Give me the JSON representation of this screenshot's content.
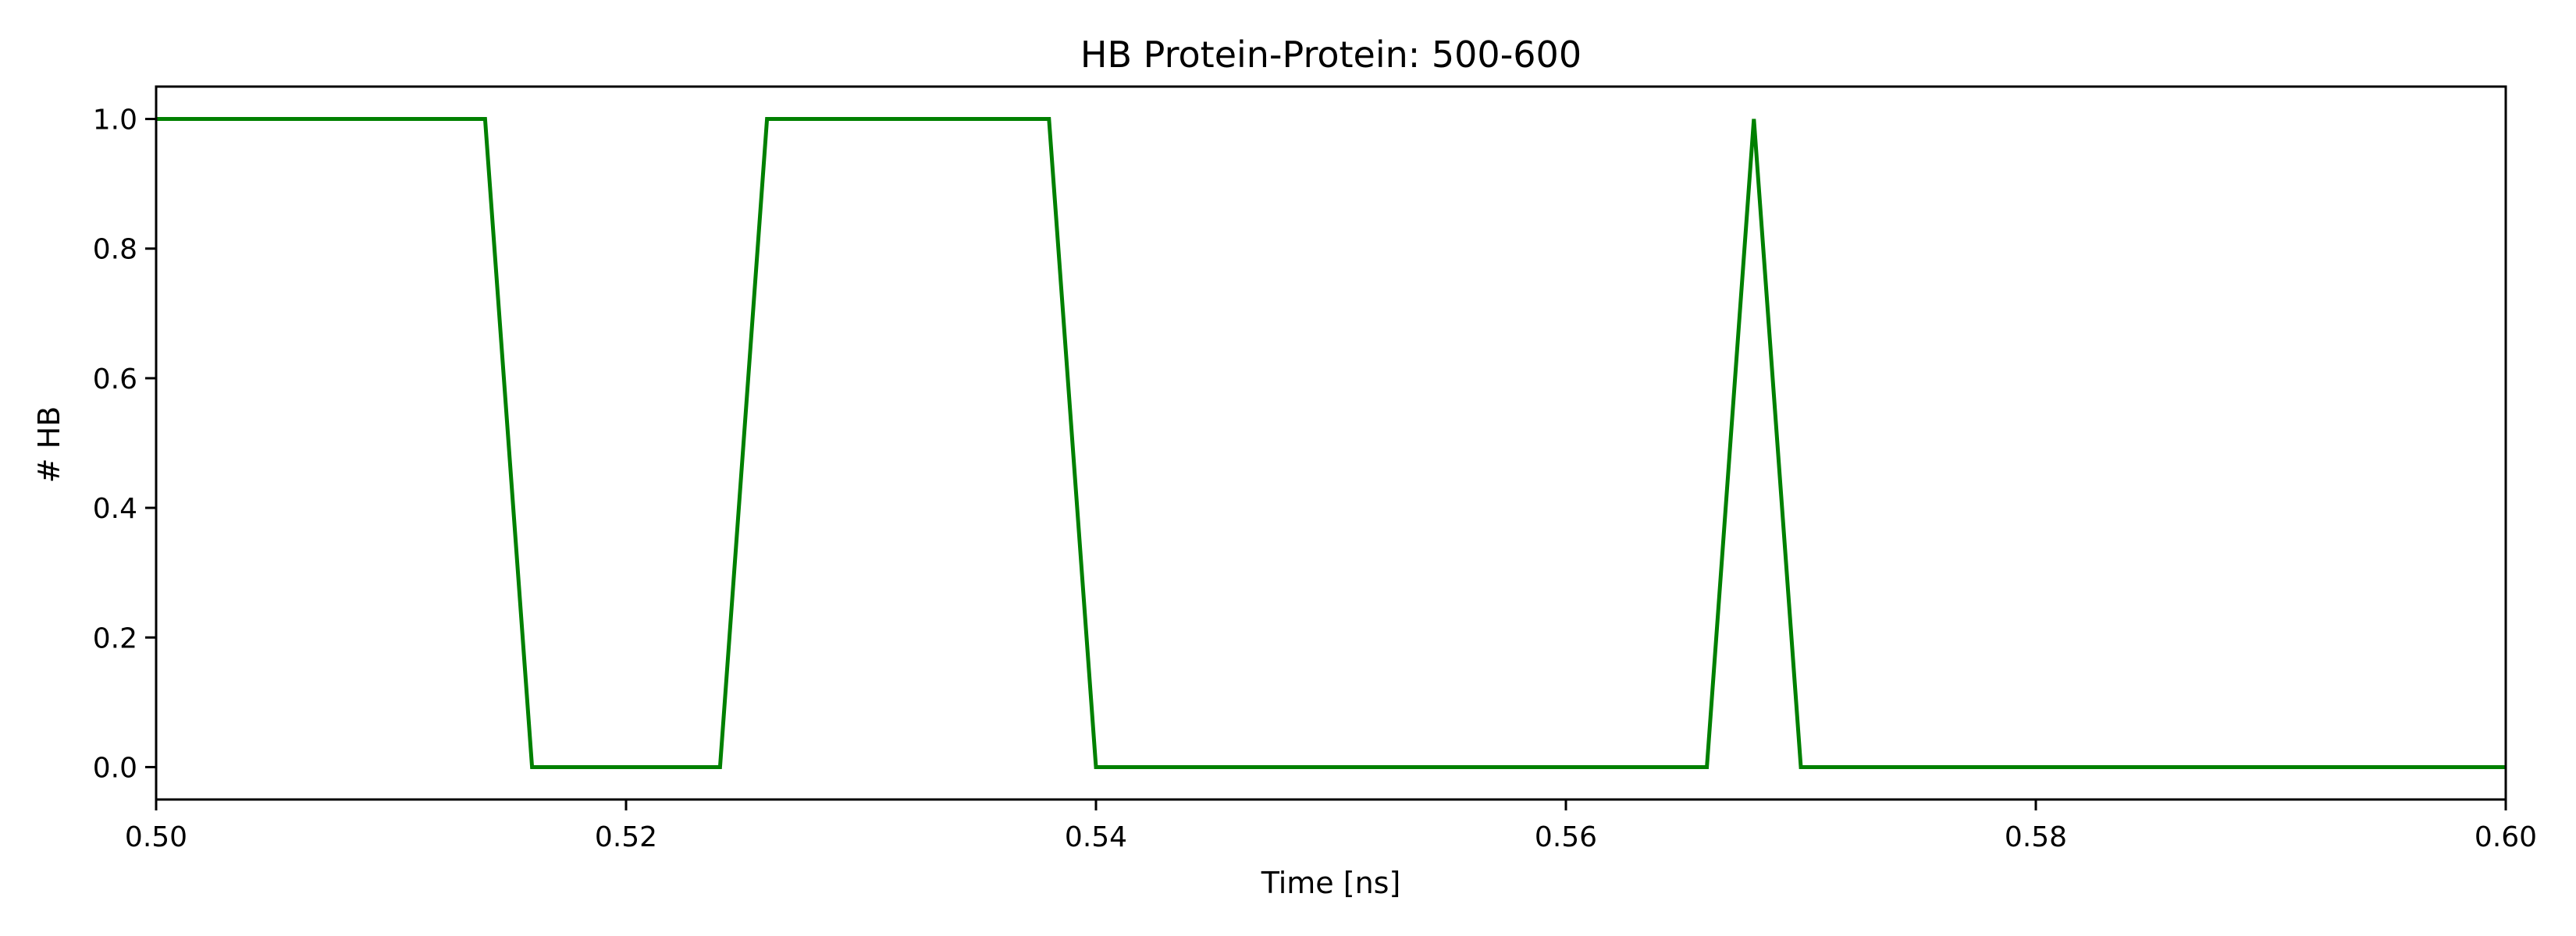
{
  "chart_data": {
    "type": "line",
    "title": "HB Protein-Protein: 500-600",
    "xlabel": "Time [ns]",
    "ylabel": "# HB",
    "xlim": [
      0.5,
      0.6
    ],
    "ylim": [
      -0.05,
      1.05
    ],
    "grid": false,
    "legend": "none",
    "x_ticks": [
      "0.50",
      "0.52",
      "0.54",
      "0.56",
      "0.58",
      "0.60"
    ],
    "y_ticks": [
      "0.0",
      "0.2",
      "0.4",
      "0.6",
      "0.8",
      "1.0"
    ],
    "series": [
      {
        "color": "#008000",
        "x": [
          0.5,
          0.514,
          0.516,
          0.524,
          0.526,
          0.538,
          0.54,
          0.566,
          0.568,
          0.57,
          0.6
        ],
        "y": [
          1,
          1,
          0,
          0,
          1,
          1,
          0,
          0,
          1,
          0,
          0
        ]
      }
    ]
  }
}
